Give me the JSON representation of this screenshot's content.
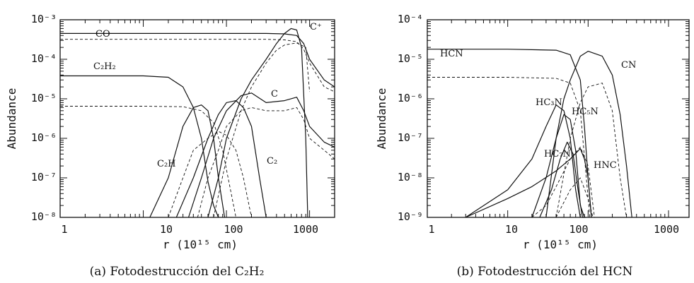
{
  "chart_data": [
    {
      "type": "line",
      "caption": "(a) Fotodestrucción del C₂H₂",
      "xlabel": "r (10¹⁵ cm)",
      "ylabel": "Abundance",
      "x_scale": "log",
      "y_scale": "log",
      "xlim": [
        1,
        2000
      ],
      "ylim": [
        1e-08,
        0.001
      ],
      "x_ticks": [
        "1",
        "10",
        "100",
        "1000"
      ],
      "y_ticks": [
        "10⁻⁸",
        "10⁻⁷",
        "10⁻⁶",
        "10⁻⁵",
        "10⁻⁴",
        "10⁻³"
      ],
      "grid": false,
      "series": [
        {
          "name": "CO",
          "style": "solid",
          "x": [
            1,
            10,
            100,
            300,
            500,
            700,
            850,
            1000,
            1500,
            2000
          ],
          "y": [
            0.00045,
            0.00045,
            0.00045,
            0.00045,
            0.00044,
            0.0004,
            0.00025,
            0.0001,
            3e-05,
            2e-05
          ]
        },
        {
          "name": "",
          "style": "dashed",
          "x": [
            1,
            10,
            100,
            300,
            500,
            700,
            850,
            1000,
            1500,
            2000
          ],
          "y": [
            0.00032,
            0.00032,
            0.00032,
            0.00032,
            0.00031,
            0.00028,
            0.00018,
            8e-05,
            2e-05,
            1.5e-05
          ]
        },
        {
          "name": "C₂H₂",
          "style": "solid",
          "x": [
            1,
            10,
            20,
            30,
            40,
            50,
            60,
            70,
            80
          ],
          "y": [
            3.8e-05,
            3.8e-05,
            3.5e-05,
            2e-05,
            6e-06,
            1e-06,
            8e-08,
            2e-08,
            1e-08
          ]
        },
        {
          "name": "",
          "style": "dashed",
          "x": [
            1,
            10,
            30,
            50,
            70,
            90,
            110,
            130
          ],
          "y": [
            6.5e-06,
            6.5e-06,
            6.3e-06,
            5e-06,
            2.5e-06,
            5e-07,
            6e-08,
            1e-08
          ]
        },
        {
          "name": "C₂H",
          "style": "solid",
          "x": [
            12,
            20,
            30,
            40,
            50,
            60,
            70,
            80,
            95
          ],
          "y": [
            1e-08,
            1e-07,
            2e-06,
            6e-06,
            7e-06,
            5e-06,
            1e-06,
            1e-07,
            1e-08
          ]
        },
        {
          "name": "C₂",
          "style": "solid",
          "x": [
            25,
            40,
            60,
            80,
            100,
            130,
            160,
            200,
            250,
            300
          ],
          "y": [
            1e-08,
            1e-07,
            1e-06,
            4e-06,
            8e-06,
            9e-06,
            6e-06,
            2e-06,
            1e-07,
            1e-08
          ]
        },
        {
          "name": "C",
          "style": "solid",
          "x": [
            35,
            50,
            70,
            100,
            150,
            200,
            300,
            500,
            700,
            850,
            1000,
            1500,
            2000
          ],
          "y": [
            1e-08,
            1e-07,
            1e-06,
            5e-06,
            1.2e-05,
            1.4e-05,
            8e-06,
            9e-06,
            1.1e-05,
            5e-06,
            2e-06,
            8e-07,
            6e-07
          ]
        },
        {
          "name": "C⁺",
          "style": "solid",
          "x": [
            60,
            80,
            100,
            150,
            200,
            300,
            400,
            500,
            600,
            700,
            800,
            900,
            950
          ],
          "y": [
            1e-08,
            1e-07,
            1e-06,
            1e-05,
            3e-05,
            0.0001,
            0.00025,
            0.00045,
            0.0006,
            0.00055,
            0.0002,
            1e-06,
            1e-08
          ]
        },
        {
          "name": "",
          "style": "dashed",
          "x": [
            20,
            30,
            40,
            60,
            80,
            100,
            130,
            160,
            200
          ],
          "y": [
            1e-08,
            1e-07,
            5e-07,
            1e-06,
            1.5e-06,
            1.2e-06,
            5e-07,
            1e-07,
            1e-08
          ]
        },
        {
          "name": "",
          "style": "dashed",
          "x": [
            45,
            60,
            80,
            100,
            150,
            200,
            300,
            500,
            700,
            850,
            1000,
            1500,
            2000
          ],
          "y": [
            1e-08,
            1e-07,
            5e-07,
            2e-06,
            5e-06,
            6e-06,
            5e-06,
            5e-06,
            6e-06,
            3e-06,
            1e-06,
            5e-07,
            3e-07
          ]
        },
        {
          "name": "",
          "style": "dashed",
          "x": [
            70,
            100,
            150,
            200,
            300,
            400,
            500,
            700,
            900,
            1000
          ],
          "y": [
            1e-08,
            3e-07,
            5e-06,
            2e-05,
            8e-05,
            0.00017,
            0.00023,
            0.00026,
            0.0002,
            1.5e-05
          ]
        }
      ],
      "annotations": [
        "CO",
        "C₂H₂",
        "C₂H",
        "C",
        "C₂",
        "C⁺"
      ]
    },
    {
      "type": "line",
      "caption": "(b) Fotodestrucción del HCN",
      "xlabel": "r (10¹⁵ cm)",
      "ylabel": "Abundance",
      "x_scale": "log",
      "y_scale": "log",
      "xlim": [
        1,
        1800
      ],
      "ylim": [
        1e-09,
        0.0001
      ],
      "x_ticks": [
        "1",
        "10",
        "100",
        "1000"
      ],
      "y_ticks": [
        "10⁻⁹",
        "10⁻⁸",
        "10⁻⁷",
        "10⁻⁶",
        "10⁻⁵",
        "10⁻⁴"
      ],
      "grid": false,
      "series": [
        {
          "name": "HCN",
          "style": "solid",
          "x": [
            1,
            10,
            40,
            60,
            80,
            90,
            100,
            110
          ],
          "y": [
            1.8e-05,
            1.8e-05,
            1.7e-05,
            1.3e-05,
            3e-06,
            2e-07,
            1e-08,
            1e-09
          ]
        },
        {
          "name": "",
          "style": "dashed",
          "x": [
            1,
            10,
            40,
            60,
            80,
            95,
            105
          ],
          "y": [
            3.5e-06,
            3.5e-06,
            3.3e-06,
            2.5e-06,
            5e-07,
            1e-08,
            1e-09
          ]
        },
        {
          "name": "CN",
          "style": "solid",
          "x": [
            30,
            40,
            50,
            60,
            80,
            100,
            150,
            200,
            250,
            300,
            350
          ],
          "y": [
            1e-09,
            1e-07,
            1e-06,
            3e-06,
            1.2e-05,
            1.6e-05,
            1.2e-05,
            4e-06,
            4e-07,
            2e-08,
            1e-09
          ]
        },
        {
          "name": "",
          "style": "dashed",
          "x": [
            40,
            60,
            80,
            100,
            150,
            200,
            250,
            300
          ],
          "y": [
            1e-09,
            1e-07,
            8e-07,
            2e-06,
            2.5e-06,
            5e-07,
            1e-08,
            1e-09
          ]
        },
        {
          "name": "HC₃N",
          "style": "solid",
          "x": [
            3,
            10,
            20,
            30,
            40,
            50,
            60,
            70,
            80
          ],
          "y": [
            1e-09,
            5e-09,
            3e-08,
            2e-07,
            7e-07,
            5e-07,
            1e-07,
            5e-09,
            1e-09
          ]
        },
        {
          "name": "HC₅N",
          "style": "solid",
          "x": [
            20,
            30,
            40,
            50,
            60,
            70,
            80,
            90
          ],
          "y": [
            1e-09,
            1e-08,
            1e-07,
            4e-07,
            3e-07,
            5e-08,
            2e-09,
            1e-09
          ]
        },
        {
          "name": "HC₇N",
          "style": "solid",
          "x": [
            25,
            35,
            45,
            55,
            65,
            75,
            85,
            95
          ],
          "y": [
            1e-09,
            5e-09,
            3e-08,
            8e-08,
            4e-08,
            5e-09,
            1e-09,
            1e-09
          ]
        },
        {
          "name": "HNC",
          "style": "solid",
          "x": [
            3,
            10,
            20,
            40,
            60,
            80,
            90,
            100,
            110
          ],
          "y": [
            1e-09,
            3e-09,
            6e-09,
            1.5e-08,
            3e-08,
            5.5e-08,
            3e-08,
            1e-08,
            1e-09
          ]
        },
        {
          "name": "",
          "style": "dashed",
          "x": [
            20,
            30,
            40,
            60,
            80,
            100,
            120
          ],
          "y": [
            1e-09,
            2e-09,
            6e-09,
            3e-08,
            6e-08,
            2e-08,
            1e-09
          ]
        },
        {
          "name": "",
          "style": "dashed",
          "x": [
            40,
            60,
            80,
            100,
            115
          ],
          "y": [
            1e-09,
            5e-09,
            1e-08,
            3e-09,
            1e-09
          ]
        }
      ],
      "annotations": [
        "HCN",
        "CN",
        "HC₃N",
        "HC₅N",
        "HC₇N",
        "HNC"
      ]
    }
  ],
  "labels": {
    "a": {
      "co": "CO",
      "c2h2": "C₂H₂",
      "c2h": "C₂H",
      "c": "C",
      "c2": "C₂",
      "cplus": "C⁺"
    },
    "b": {
      "hcn": "HCN",
      "cn": "CN",
      "hc3n": "HC₃N",
      "hc5n": "HC₅N",
      "hc7n": "HC₇N",
      "hnc": "HNC"
    }
  }
}
